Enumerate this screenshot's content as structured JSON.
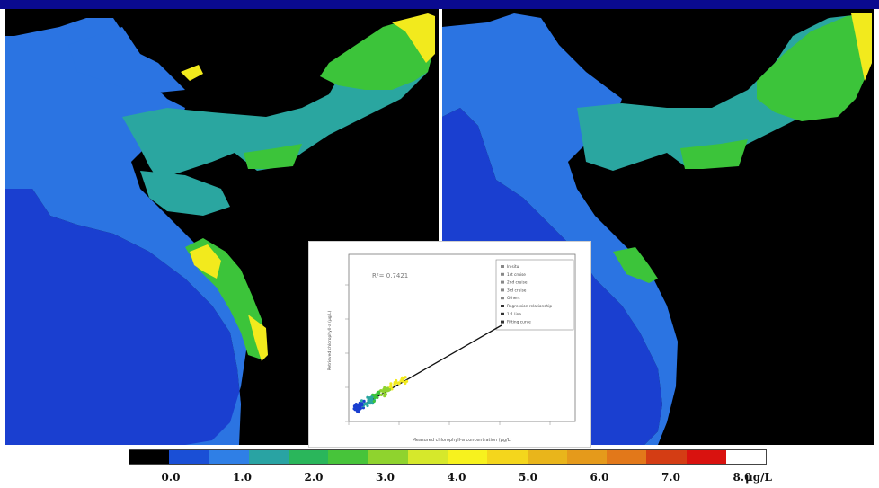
{
  "colorbar": {
    "ticks": [
      "0.0",
      "1.0",
      "2.0",
      "3.0",
      "4.0",
      "5.0",
      "6.0",
      "7.0",
      "8.0"
    ],
    "unit": "μg/L",
    "colors": [
      "#000000",
      "#1a4fd6",
      "#2f7fe6",
      "#29a3a3",
      "#2ab65b",
      "#47c43a",
      "#8fd32e",
      "#d6e82b",
      "#f7f21e",
      "#f4d61c",
      "#e9b51b",
      "#e59a1b",
      "#e2781a",
      "#d43d14",
      "#d9120f",
      "#ffffff"
    ]
  },
  "scatter": {
    "annotation": "R²= 0.7421",
    "xlabel": "Measured chlorophyll-a concentration (μg/L)",
    "ylabel": "Retrieved chlorophyll-a (μg/L)",
    "legend": [
      "In-situ",
      "1st cruise",
      "2nd cruise",
      "3rd cruise",
      "Others",
      "Regression relationship",
      "1:1 line",
      "Fitting curve"
    ]
  },
  "colors": {
    "land": "#000000",
    "deep_water": "#1638c9",
    "mid_water": "#2a78e0",
    "shelf_water": "#2aa6a0",
    "coastal_green": "#3cc43a",
    "coastal_yellow": "#f2ea1d"
  }
}
